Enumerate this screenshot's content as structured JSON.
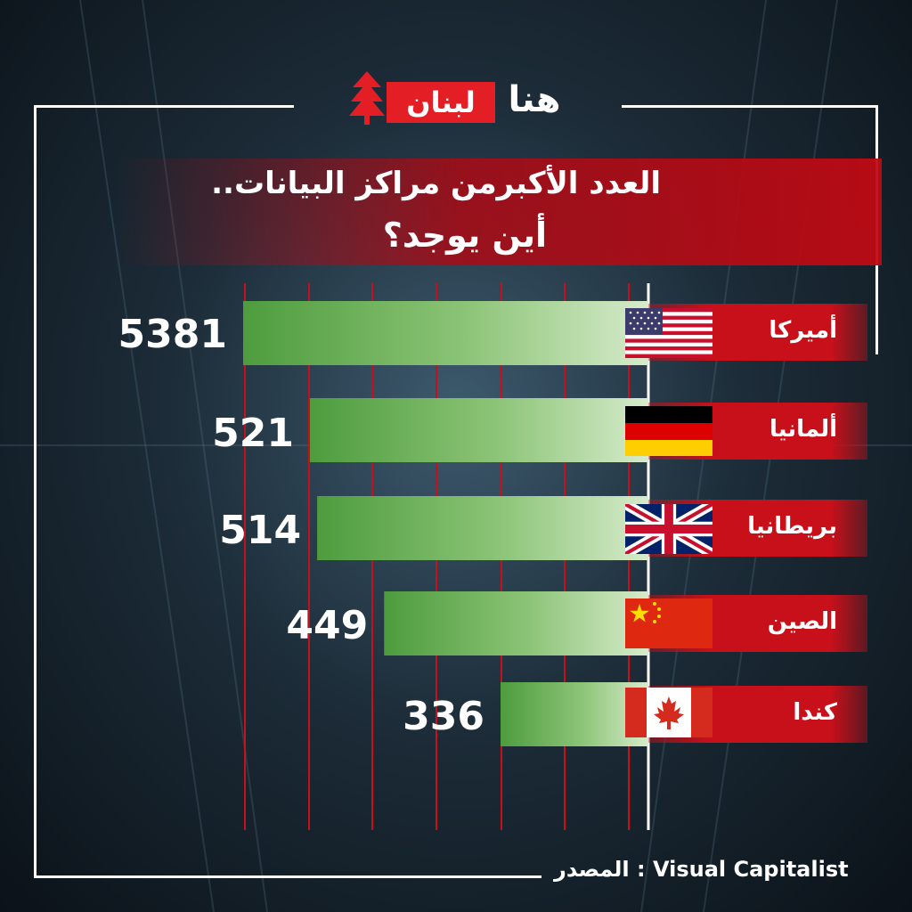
{
  "brand": {
    "logo_red": "لبنان",
    "logo_white": "هنا"
  },
  "title_line1": "العدد الأكبرمن مراكز البيانات..",
  "title_line2": "أين يوجد؟",
  "source_text": "المصدر : Visual Capitalist",
  "colors": {
    "accent": "#c8101a",
    "bar_dark": "#4a9a3c",
    "bar_light": "#d4e9c8",
    "grid": "#c8101a"
  },
  "chart_data": {
    "type": "bar",
    "orientation": "horizontal",
    "categories": [
      "أميركا",
      "ألمانيا",
      "بريطانيا",
      "الصين",
      "كندا"
    ],
    "values": [
      5381,
      521,
      514,
      449,
      336
    ],
    "flags": [
      "us-flag",
      "germany-flag",
      "uk-flag",
      "china-flag",
      "canada-flag"
    ],
    "grid": true
  }
}
